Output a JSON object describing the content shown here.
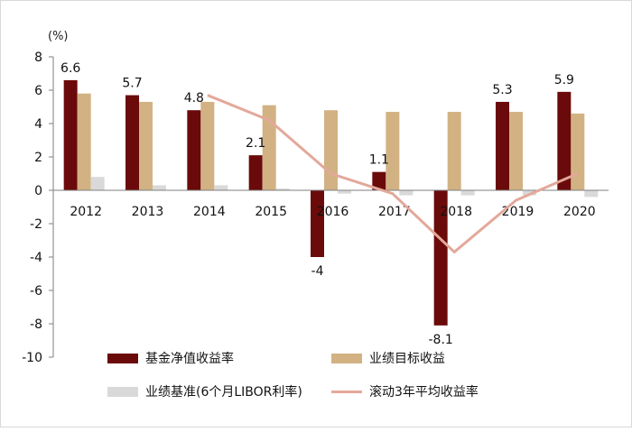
{
  "chart_data": {
    "type": "bar",
    "unit_label": "(%)",
    "categories": [
      "2012",
      "2013",
      "2014",
      "2015",
      "2016",
      "2017",
      "2018",
      "2019",
      "2020"
    ],
    "ylim": [
      -10,
      8
    ],
    "yticks": [
      -10,
      -8,
      -6,
      -4,
      -2,
      0,
      2,
      4,
      6,
      8
    ],
    "series": [
      {
        "name": "基金净值收益率",
        "type": "bar",
        "color": "#6b0a0a",
        "values": [
          6.6,
          5.7,
          4.8,
          2.1,
          -4,
          1.1,
          -8.1,
          5.3,
          5.9
        ],
        "labels": [
          "6.6",
          "5.7",
          "4.8",
          "2.1",
          "-4",
          "1.1",
          "-8.1",
          "5.3",
          "5.9"
        ]
      },
      {
        "name": "业绩目标收益",
        "type": "bar",
        "color": "#d2b283",
        "values": [
          5.8,
          5.3,
          5.3,
          5.1,
          4.8,
          4.7,
          4.7,
          4.7,
          4.6
        ]
      },
      {
        "name": "业绩基准(6个月LIBOR利率)",
        "type": "bar",
        "color": "#d9d9d9",
        "values": [
          0.8,
          0.3,
          0.3,
          0.1,
          -0.2,
          -0.3,
          -0.3,
          -0.3,
          -0.4
        ]
      },
      {
        "name": "滚动3年平均收益率",
        "type": "line",
        "color": "#e3a89a",
        "values": [
          null,
          null,
          5.7,
          4.2,
          1.0,
          -0.2,
          -3.7,
          -0.6,
          1.0
        ]
      }
    ]
  }
}
